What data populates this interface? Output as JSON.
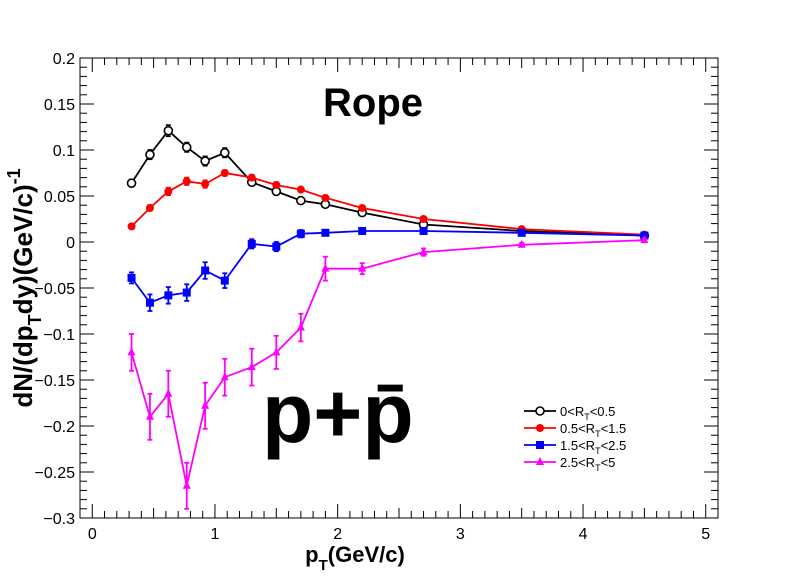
{
  "chart_data": {
    "type": "line",
    "title": "Rope",
    "particle_label": "p+p̄",
    "xlabel": {
      "main": "p",
      "sub": "T",
      "rest": "(GeV/c)"
    },
    "ylabel": {
      "p1": "dN/(dp",
      "sub": "T",
      "p2": "dy)(GeV/c)",
      "sup": "-1"
    },
    "xlim": [
      -0.1,
      5.1
    ],
    "ylim": [
      -0.3,
      0.2
    ],
    "x_ticks": [
      0,
      1,
      2,
      3,
      4,
      5
    ],
    "x_tick_labels": [
      "0",
      "1",
      "2",
      "3",
      "4",
      "5"
    ],
    "y_ticks": [
      -0.3,
      -0.25,
      -0.2,
      -0.15,
      -0.1,
      -0.05,
      0,
      0.05,
      0.1,
      0.15,
      0.2
    ],
    "y_tick_labels": [
      "−0.3",
      "−0.25",
      "−0.2",
      "−0.15",
      "−0.1",
      "−0.05",
      "0",
      "0.05",
      "0.1",
      "0.15",
      "0.2"
    ],
    "legend_position": "bottom-right",
    "series": [
      {
        "legend": {
          "pre": "0<R",
          "sub": "T",
          "post": "<0.5"
        },
        "color": "#000000",
        "marker": "open-circle",
        "x": [
          0.32,
          0.47,
          0.62,
          0.77,
          0.92,
          1.08,
          1.3,
          1.5,
          1.7,
          1.9,
          2.2,
          2.7,
          3.5,
          4.5
        ],
        "y": [
          0.064,
          0.095,
          0.121,
          0.103,
          0.088,
          0.097,
          0.065,
          0.055,
          0.045,
          0.041,
          0.032,
          0.019,
          0.012,
          0.007
        ],
        "err": [
          0.004,
          0.005,
          0.006,
          0.005,
          0.005,
          0.005,
          0.003,
          0.003,
          0.003,
          0.002,
          0.002,
          0.001,
          0.001,
          0.001
        ]
      },
      {
        "legend": {
          "pre": "0.5<R",
          "sub": "T",
          "post": "<1.5"
        },
        "color": "#ff0000",
        "marker": "filled-circle",
        "x": [
          0.32,
          0.47,
          0.62,
          0.77,
          0.92,
          1.08,
          1.3,
          1.5,
          1.7,
          1.9,
          2.2,
          2.7,
          3.5,
          4.5
        ],
        "y": [
          0.017,
          0.037,
          0.055,
          0.066,
          0.063,
          0.075,
          0.07,
          0.062,
          0.057,
          0.048,
          0.037,
          0.025,
          0.014,
          0.008
        ],
        "err": [
          0.002,
          0.003,
          0.004,
          0.004,
          0.004,
          0.003,
          0.003,
          0.003,
          0.002,
          0.002,
          0.002,
          0.001,
          0.001,
          0.001
        ]
      },
      {
        "legend": {
          "pre": "1.5<R",
          "sub": "T",
          "post": "<2.5"
        },
        "color": "#0000ff",
        "marker": "filled-square",
        "x": [
          0.32,
          0.47,
          0.62,
          0.77,
          0.92,
          1.08,
          1.3,
          1.5,
          1.7,
          1.9,
          2.2,
          2.7,
          3.5,
          4.5
        ],
        "y": [
          -0.039,
          -0.066,
          -0.058,
          -0.055,
          -0.031,
          -0.042,
          -0.002,
          -0.005,
          0.009,
          0.01,
          0.012,
          0.012,
          0.01,
          0.007
        ],
        "err": [
          0.006,
          0.009,
          0.009,
          0.009,
          0.009,
          0.008,
          0.005,
          0.005,
          0.004,
          0.003,
          0.002,
          0.001,
          0.001,
          0.001
        ]
      },
      {
        "legend": {
          "pre": "2.5<R",
          "sub": "T",
          "post": "<5"
        },
        "color": "#ff00ff",
        "marker": "filled-triangle",
        "x": [
          0.32,
          0.47,
          0.62,
          0.77,
          0.92,
          1.08,
          1.3,
          1.5,
          1.7,
          1.9,
          2.2,
          2.7,
          3.5,
          4.5
        ],
        "y": [
          -0.12,
          -0.19,
          -0.165,
          -0.265,
          -0.178,
          -0.147,
          -0.136,
          -0.12,
          -0.093,
          -0.029,
          -0.029,
          -0.011,
          -0.003,
          0.002
        ],
        "err": [
          0.02,
          0.025,
          0.025,
          0.025,
          0.025,
          0.02,
          0.02,
          0.018,
          0.015,
          0.013,
          0.006,
          0.004,
          0.002,
          0.002
        ]
      }
    ]
  }
}
